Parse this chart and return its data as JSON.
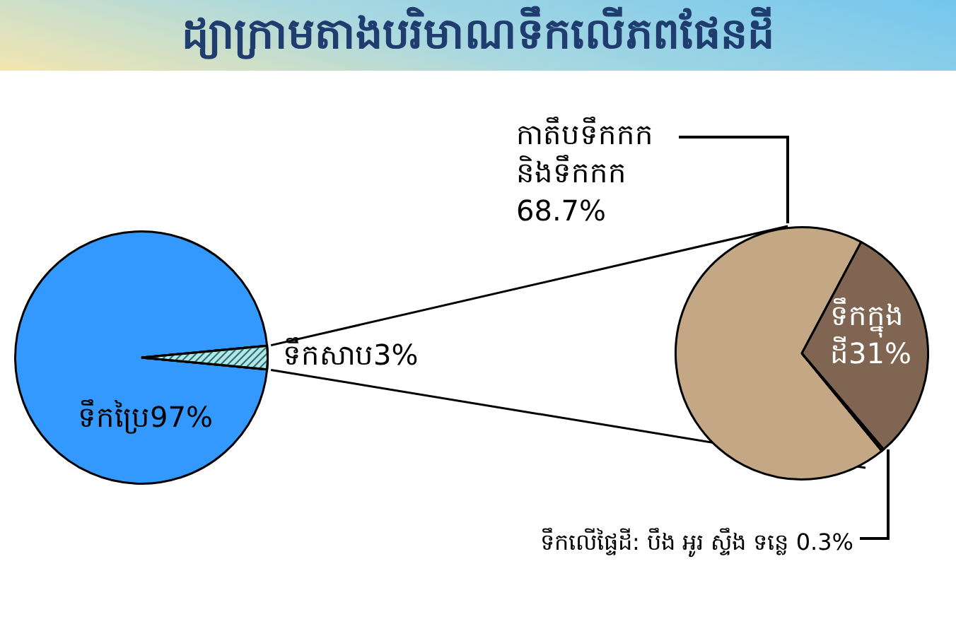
{
  "chart_data": [
    {
      "type": "pie",
      "title": "ដ្យាក្រាមតាងបរិមាណទឹកលើភពផែនដី",
      "categories": [
        "ទឹកប្រៃ",
        "ទឹកសាប"
      ],
      "values": [
        97,
        3
      ],
      "colors": [
        "#3399ff",
        "#aee8e8"
      ],
      "value_labels": [
        "97%",
        "3%"
      ]
    },
    {
      "type": "pie",
      "categories": [
        "កាតឹបទឹកកក\nនិងទឹកកក\n",
        "ទឹកក្នុង\nដី",
        "ទឹកលើផ្ទៃដី: បឹង អូរ ស្ទឹង ទន្លេ "
      ],
      "values": [
        68.7,
        31,
        0.3
      ],
      "colors": [
        "#c4a784",
        "#7f6552",
        "#c4a784"
      ],
      "value_labels": [
        "68.7%",
        "31%",
        "0.3%"
      ]
    }
  ]
}
